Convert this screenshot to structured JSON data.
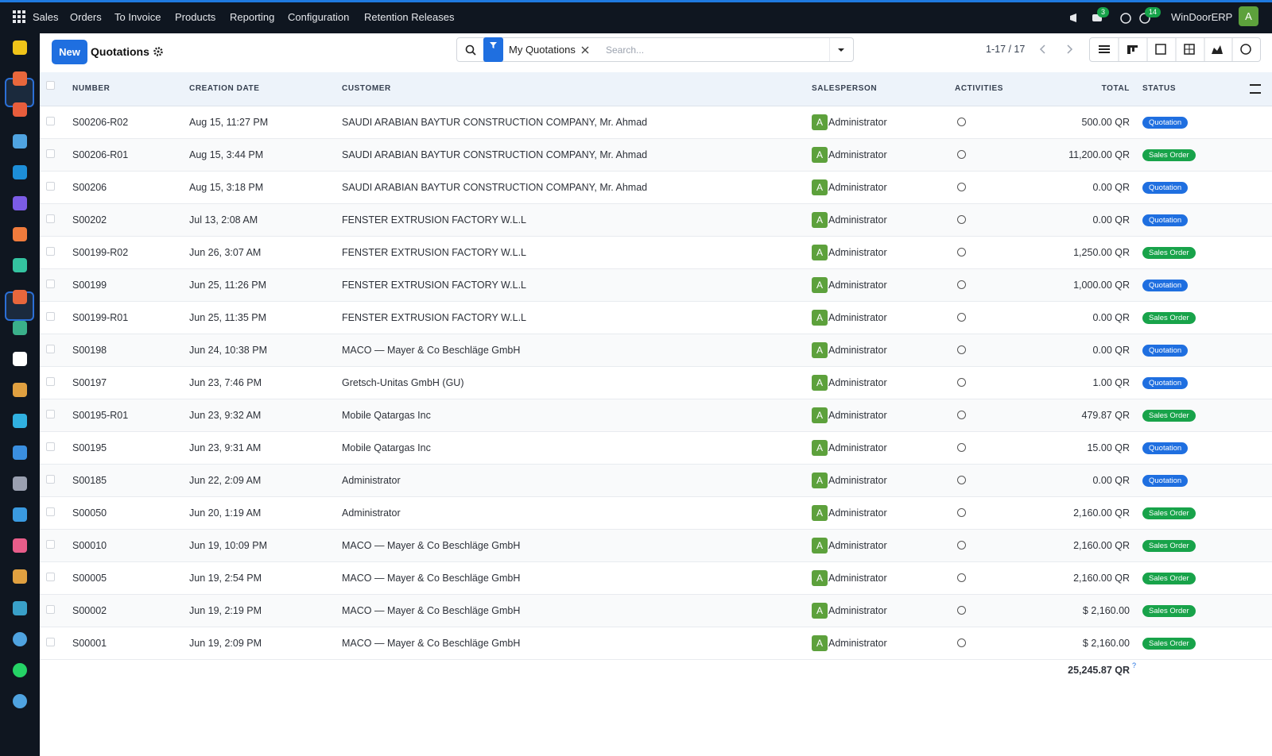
{
  "nav": {
    "menu": [
      "Sales",
      "Orders",
      "To Invoice",
      "Products",
      "Reporting",
      "Configuration",
      "Retention Releases"
    ],
    "messages_badge": "3",
    "activities_badge": "14",
    "company": "WinDoorERP",
    "avatar": "A"
  },
  "control_panel": {
    "new_button": "New",
    "title": "Quotations",
    "search_facet": "My Quotations",
    "search_placeholder": "Search...",
    "pager": "1-17 / 17"
  },
  "table": {
    "columns": {
      "number": "NUMBER",
      "date": "CREATION DATE",
      "customer": "CUSTOMER",
      "salesperson": "SALESPERSON",
      "activities": "ACTIVITIES",
      "total": "TOTAL",
      "status": "STATUS"
    },
    "rows": [
      {
        "number": "S00206-R02",
        "date": "Aug 15, 11:27 PM",
        "customer": "SAUDI ARABIAN BAYTUR CONSTRUCTION COMPANY, Mr. Ahmad",
        "avatar": "A",
        "salesperson": "Administrator",
        "total": "500.00 QR",
        "status": "Quotation"
      },
      {
        "number": "S00206-R01",
        "date": "Aug 15, 3:44 PM",
        "customer": "SAUDI ARABIAN BAYTUR CONSTRUCTION COMPANY, Mr. Ahmad",
        "avatar": "A",
        "salesperson": "Administrator",
        "total": "11,200.00 QR",
        "status": "Sales Order"
      },
      {
        "number": "S00206",
        "date": "Aug 15, 3:18 PM",
        "customer": "SAUDI ARABIAN BAYTUR CONSTRUCTION COMPANY, Mr. Ahmad",
        "avatar": "A",
        "salesperson": "Administrator",
        "total": "0.00 QR",
        "status": "Quotation"
      },
      {
        "number": "S00202",
        "date": "Jul 13, 2:08 AM",
        "customer": "FENSTER EXTRUSION FACTORY W.L.L",
        "avatar": "A",
        "salesperson": "Administrator",
        "total": "0.00 QR",
        "status": "Quotation"
      },
      {
        "number": "S00199-R02",
        "date": "Jun 26, 3:07 AM",
        "customer": "FENSTER EXTRUSION FACTORY W.L.L",
        "avatar": "A",
        "salesperson": "Administrator",
        "total": "1,250.00 QR",
        "status": "Sales Order"
      },
      {
        "number": "S00199",
        "date": "Jun 25, 11:26 PM",
        "customer": "FENSTER EXTRUSION FACTORY W.L.L",
        "avatar": "A",
        "salesperson": "Administrator",
        "total": "1,000.00 QR",
        "status": "Quotation"
      },
      {
        "number": "S00199-R01",
        "date": "Jun 25, 11:35 PM",
        "customer": "FENSTER EXTRUSION FACTORY W.L.L",
        "avatar": "A",
        "salesperson": "Administrator",
        "total": "0.00 QR",
        "status": "Sales Order"
      },
      {
        "number": "S00198",
        "date": "Jun 24, 10:38 PM",
        "customer": "MACO — Mayer & Co Beschläge GmbH",
        "avatar": "A",
        "salesperson": "Administrator",
        "total": "0.00 QR",
        "status": "Quotation"
      },
      {
        "number": "S00197",
        "date": "Jun 23, 7:46 PM",
        "customer": "Gretsch-Unitas GmbH (GU)",
        "avatar": "A",
        "salesperson": "Administrator",
        "total": "1.00 QR",
        "status": "Quotation"
      },
      {
        "number": "S00195-R01",
        "date": "Jun 23, 9:32 AM",
        "customer": "Mobile Qatargas Inc",
        "avatar": "A",
        "salesperson": "Administrator",
        "total": "479.87 QR",
        "status": "Sales Order"
      },
      {
        "number": "S00195",
        "date": "Jun 23, 9:31 AM",
        "customer": "Mobile Qatargas Inc",
        "avatar": "A",
        "salesperson": "Administrator",
        "total": "15.00 QR",
        "status": "Quotation"
      },
      {
        "number": "S00185",
        "date": "Jun 22, 2:09 AM",
        "customer": "Administrator",
        "avatar": "A",
        "salesperson": "Administrator",
        "total": "0.00 QR",
        "status": "Quotation"
      },
      {
        "number": "S00050",
        "date": "Jun 20, 1:19 AM",
        "customer": "Administrator",
        "avatar": "A",
        "salesperson": "Administrator",
        "total": "2,160.00 QR",
        "status": "Sales Order"
      },
      {
        "number": "S00010",
        "date": "Jun 19, 10:09 PM",
        "customer": "MACO — Mayer & Co Beschläge GmbH",
        "avatar": "A",
        "salesperson": "Administrator",
        "total": "2,160.00 QR",
        "status": "Sales Order"
      },
      {
        "number": "S00005",
        "date": "Jun 19, 2:54 PM",
        "customer": "MACO — Mayer & Co Beschläge GmbH",
        "avatar": "A",
        "salesperson": "Administrator",
        "total": "2,160.00 QR",
        "status": "Sales Order"
      },
      {
        "number": "S00002",
        "date": "Jun 19, 2:19 PM",
        "customer": "MACO — Mayer & Co Beschläge GmbH",
        "avatar": "A",
        "salesperson": "Administrator",
        "total": "$ 2,160.00",
        "status": "Sales Order"
      },
      {
        "number": "S00001",
        "date": "Jun 19, 2:09 PM",
        "customer": "MACO — Mayer & Co Beschläge GmbH",
        "avatar": "A",
        "salesperson": "Administrator",
        "total": "$ 2,160.00",
        "status": "Sales Order"
      }
    ],
    "footer_total": "25,245.87 QR",
    "footer_help": "?"
  }
}
